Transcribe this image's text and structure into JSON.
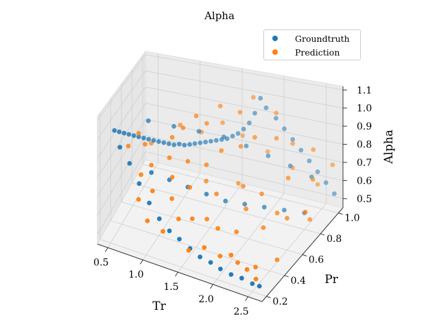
{
  "chart_data": {
    "type": "scatter",
    "title": "Alpha",
    "xlabel": "Tr",
    "ylabel": "Pr",
    "zlabel": "Alpha",
    "xticks": [
      "0.5",
      "1.0",
      "1.5",
      "2.0",
      "2.5"
    ],
    "yticks": [
      "0.2",
      "0.4",
      "0.6",
      "0.8",
      "1.0"
    ],
    "zticks": [
      "0.5",
      "0.6",
      "0.7",
      "0.8",
      "0.9",
      "1.0",
      "1.1"
    ],
    "xlim": [
      0.35,
      2.7
    ],
    "ylim": [
      0.15,
      1.05
    ],
    "zlim": [
      0.45,
      1.12
    ],
    "grid": true,
    "legend_position": "top-right",
    "colors": {
      "groundtruth": "#1f77b4",
      "prediction": "#ff7f0e"
    },
    "series": [
      {
        "name": "Groundtruth",
        "points": [
          [
            0.4,
            0.4,
            0.95
          ],
          [
            0.45,
            0.42,
            0.94
          ],
          [
            0.5,
            0.44,
            0.93
          ],
          [
            0.55,
            0.46,
            0.92
          ],
          [
            0.6,
            0.48,
            0.91
          ],
          [
            0.65,
            0.5,
            0.9
          ],
          [
            0.7,
            0.52,
            0.89
          ],
          [
            0.75,
            0.54,
            0.88
          ],
          [
            0.8,
            0.56,
            0.87
          ],
          [
            0.85,
            0.58,
            0.86
          ],
          [
            0.9,
            0.6,
            0.85
          ],
          [
            0.95,
            0.62,
            0.84
          ],
          [
            1.0,
            0.64,
            0.83
          ],
          [
            1.05,
            0.66,
            0.83
          ],
          [
            1.1,
            0.68,
            0.82
          ],
          [
            1.15,
            0.7,
            0.82
          ],
          [
            1.2,
            0.72,
            0.82
          ],
          [
            1.25,
            0.74,
            0.82
          ],
          [
            1.3,
            0.76,
            0.82
          ],
          [
            1.35,
            0.78,
            0.82
          ],
          [
            1.4,
            0.8,
            0.82
          ],
          [
            1.45,
            0.82,
            0.82
          ],
          [
            1.5,
            0.84,
            0.82
          ],
          [
            1.55,
            0.86,
            0.83
          ],
          [
            1.6,
            0.88,
            0.84
          ],
          [
            1.65,
            0.9,
            0.86
          ],
          [
            1.7,
            0.92,
            0.89
          ],
          [
            1.75,
            0.94,
            0.94
          ],
          [
            1.8,
            0.96,
            1.02
          ],
          [
            1.85,
            0.98,
            0.96
          ],
          [
            1.95,
            1.0,
            0.9
          ],
          [
            2.05,
            1.0,
            0.85
          ],
          [
            2.15,
            1.0,
            0.8
          ],
          [
            2.25,
            1.0,
            0.75
          ],
          [
            2.35,
            1.0,
            0.7
          ],
          [
            2.45,
            1.0,
            0.65
          ],
          [
            2.55,
            1.0,
            0.6
          ],
          [
            2.65,
            1.0,
            0.55
          ],
          [
            0.55,
            0.3,
            0.92
          ],
          [
            0.7,
            0.28,
            0.86
          ],
          [
            0.85,
            0.26,
            0.78
          ],
          [
            1.0,
            0.25,
            0.7
          ],
          [
            1.15,
            0.24,
            0.64
          ],
          [
            1.3,
            0.23,
            0.6
          ],
          [
            1.45,
            0.22,
            0.58
          ],
          [
            1.6,
            0.22,
            0.55
          ],
          [
            1.75,
            0.21,
            0.53
          ],
          [
            1.9,
            0.21,
            0.52
          ],
          [
            2.05,
            0.2,
            0.51
          ],
          [
            2.2,
            0.2,
            0.5
          ],
          [
            2.35,
            0.2,
            0.5
          ],
          [
            2.5,
            0.2,
            0.49
          ],
          [
            2.6,
            0.2,
            0.49
          ],
          [
            0.7,
            0.6,
            0.95
          ],
          [
            0.95,
            0.7,
            0.9
          ],
          [
            1.2,
            0.78,
            0.86
          ],
          [
            1.45,
            0.85,
            0.82
          ],
          [
            1.7,
            0.88,
            0.78
          ],
          [
            1.95,
            0.9,
            0.74
          ],
          [
            2.2,
            0.92,
            0.7
          ],
          [
            2.45,
            0.93,
            0.66
          ],
          [
            0.9,
            0.4,
            0.78
          ],
          [
            1.1,
            0.45,
            0.74
          ],
          [
            1.3,
            0.5,
            0.7
          ],
          [
            1.5,
            0.55,
            0.66
          ],
          [
            1.7,
            0.6,
            0.62
          ],
          [
            1.9,
            0.65,
            0.6
          ],
          [
            2.1,
            0.7,
            0.58
          ],
          [
            2.3,
            0.75,
            0.56
          ],
          [
            2.5,
            0.8,
            0.54
          ]
        ]
      },
      {
        "name": "Prediction",
        "points": [
          [
            0.55,
            0.45,
            0.86
          ],
          [
            0.65,
            0.5,
            0.92
          ],
          [
            0.75,
            0.48,
            0.88
          ],
          [
            0.8,
            0.35,
            0.78
          ],
          [
            0.9,
            0.4,
            0.82
          ],
          [
            1.0,
            0.3,
            0.74
          ],
          [
            1.05,
            0.55,
            0.92
          ],
          [
            1.1,
            0.45,
            0.86
          ],
          [
            1.15,
            0.6,
            0.96
          ],
          [
            1.2,
            0.38,
            0.8
          ],
          [
            1.25,
            0.68,
            1.0
          ],
          [
            1.3,
            0.5,
            0.84
          ],
          [
            1.35,
            0.72,
            0.95
          ],
          [
            1.4,
            0.42,
            0.75
          ],
          [
            1.45,
            0.8,
            1.02
          ],
          [
            1.5,
            0.55,
            0.82
          ],
          [
            1.55,
            0.3,
            0.66
          ],
          [
            1.6,
            0.65,
            0.86
          ],
          [
            1.65,
            0.85,
            0.98
          ],
          [
            1.7,
            0.48,
            0.72
          ],
          [
            1.75,
            0.92,
            1.04
          ],
          [
            1.8,
            0.7,
            0.88
          ],
          [
            1.85,
            0.35,
            0.62
          ],
          [
            1.9,
            0.78,
            0.9
          ],
          [
            1.95,
            0.58,
            0.74
          ],
          [
            2.0,
            0.95,
            0.96
          ],
          [
            2.05,
            0.4,
            0.6
          ],
          [
            2.1,
            0.85,
            0.88
          ],
          [
            2.15,
            0.62,
            0.7
          ],
          [
            2.2,
            0.28,
            0.52
          ],
          [
            2.25,
            0.9,
            0.84
          ],
          [
            2.3,
            0.5,
            0.6
          ],
          [
            2.35,
            0.75,
            0.74
          ],
          [
            2.4,
            0.32,
            0.5
          ],
          [
            2.45,
            0.95,
            0.8
          ],
          [
            2.5,
            0.6,
            0.62
          ],
          [
            2.55,
            0.85,
            0.7
          ],
          [
            2.6,
            0.4,
            0.52
          ],
          [
            2.65,
            0.98,
            0.72
          ],
          [
            2.68,
            0.7,
            0.58
          ],
          [
            1.0,
            0.22,
            0.62
          ],
          [
            1.2,
            0.24,
            0.58
          ],
          [
            1.4,
            0.26,
            0.66
          ],
          [
            1.6,
            0.2,
            0.55
          ],
          [
            1.8,
            0.22,
            0.58
          ],
          [
            2.0,
            0.24,
            0.55
          ],
          [
            2.2,
            0.2,
            0.6
          ],
          [
            2.4,
            0.22,
            0.54
          ],
          [
            2.55,
            0.2,
            0.52
          ],
          [
            0.7,
            0.65,
            0.8
          ],
          [
            0.95,
            0.8,
            0.86
          ],
          [
            1.15,
            0.88,
            0.8
          ],
          [
            1.35,
            0.95,
            0.84
          ],
          [
            1.55,
            1.0,
            0.76
          ],
          [
            1.85,
            1.0,
            0.7
          ],
          [
            2.15,
            1.0,
            0.64
          ],
          [
            2.45,
            1.0,
            0.58
          ],
          [
            0.85,
            0.25,
            0.7
          ],
          [
            1.25,
            0.32,
            0.72
          ],
          [
            1.65,
            0.4,
            0.62
          ],
          [
            2.05,
            0.52,
            0.66
          ],
          [
            2.35,
            0.62,
            0.62
          ],
          [
            2.6,
            0.72,
            0.6
          ],
          [
            1.45,
            0.6,
            0.7
          ],
          [
            1.75,
            0.72,
            0.66
          ]
        ]
      }
    ]
  }
}
